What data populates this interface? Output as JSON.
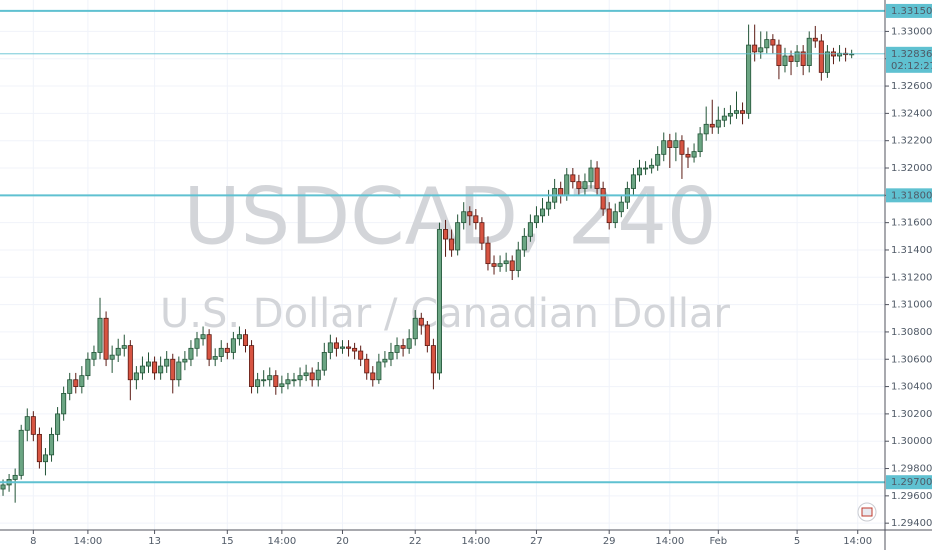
{
  "chart_data": {
    "type": "candlestick",
    "title": "USDCAD, 240",
    "subtitle": "U.S. Dollar / Canadian Dollar",
    "up_color": "#6ba583",
    "down_color": "#d75442",
    "up_border": "#225437",
    "down_border": "#5b1a13",
    "level_color": "#5fc1d1",
    "grid": true,
    "xlim": [
      -0.5,
      145.5
    ],
    "ylim": [
      1.2935,
      1.3323
    ],
    "xticks": [
      {
        "value": 5,
        "label": "8"
      },
      {
        "value": 14,
        "label": "14:00"
      },
      {
        "value": 25,
        "label": "13"
      },
      {
        "value": 37,
        "label": "15"
      },
      {
        "value": 46,
        "label": "14:00"
      },
      {
        "value": 56,
        "label": "20"
      },
      {
        "value": 68,
        "label": "22"
      },
      {
        "value": 78,
        "label": "14:00"
      },
      {
        "value": 88,
        "label": "27"
      },
      {
        "value": 100,
        "label": "29"
      },
      {
        "value": 110,
        "label": "14:00"
      },
      {
        "value": 118,
        "label": "Feb"
      },
      {
        "value": 131,
        "label": "5"
      },
      {
        "value": 141,
        "label": "14:00"
      }
    ],
    "yticks": [
      {
        "value": 1.294,
        "label": "1.29400"
      },
      {
        "value": 1.296,
        "label": "1.29600"
      },
      {
        "value": 1.298,
        "label": "1.29800"
      },
      {
        "value": 1.3,
        "label": "1.30000"
      },
      {
        "value": 1.302,
        "label": "1.30200"
      },
      {
        "value": 1.304,
        "label": "1.30400"
      },
      {
        "value": 1.306,
        "label": "1.30600"
      },
      {
        "value": 1.308,
        "label": "1.30800"
      },
      {
        "value": 1.31,
        "label": "1.31000"
      },
      {
        "value": 1.312,
        "label": "1.31200"
      },
      {
        "value": 1.314,
        "label": "1.31400"
      },
      {
        "value": 1.316,
        "label": "1.31600"
      },
      {
        "value": 1.318,
        "label": "1.31800"
      },
      {
        "value": 1.32,
        "label": "1.32000"
      },
      {
        "value": 1.322,
        "label": "1.32200"
      },
      {
        "value": 1.324,
        "label": "1.32400"
      },
      {
        "value": 1.326,
        "label": "1.32600"
      },
      {
        "value": 1.328,
        "label": "1.32800"
      },
      {
        "value": 1.33,
        "label": "1.33000"
      }
    ],
    "levels": [
      {
        "value": 1.3315,
        "label": "1.33150"
      },
      {
        "value": 1.318,
        "label": "1.31800"
      },
      {
        "value": 1.297,
        "label": "1.29700"
      }
    ],
    "last_price": 1.32836,
    "countdown": "02:12:27",
    "candles": [
      [
        1.2965,
        1.2972,
        1.296,
        1.2968
      ],
      [
        1.2968,
        1.2976,
        1.2963,
        1.2972
      ],
      [
        1.2972,
        1.298,
        1.2955,
        1.2975
      ],
      [
        1.2975,
        1.3012,
        1.2972,
        1.3008
      ],
      [
        1.3008,
        1.3024,
        1.3,
        1.3018
      ],
      [
        1.3018,
        1.3022,
        1.3,
        1.3005
      ],
      [
        1.3005,
        1.301,
        1.298,
        1.2985
      ],
      [
        1.2985,
        1.2995,
        1.2975,
        1.299
      ],
      [
        1.299,
        1.301,
        1.2985,
        1.3005
      ],
      [
        1.3005,
        1.3025,
        1.3,
        1.302
      ],
      [
        1.302,
        1.304,
        1.3015,
        1.3035
      ],
      [
        1.3035,
        1.305,
        1.303,
        1.3045
      ],
      [
        1.3045,
        1.305,
        1.3035,
        1.304
      ],
      [
        1.304,
        1.3055,
        1.3035,
        1.3048
      ],
      [
        1.3048,
        1.3065,
        1.3045,
        1.306
      ],
      [
        1.306,
        1.307,
        1.3055,
        1.3065
      ],
      [
        1.3065,
        1.3105,
        1.306,
        1.309
      ],
      [
        1.309,
        1.3095,
        1.3055,
        1.306
      ],
      [
        1.306,
        1.307,
        1.305,
        1.3063
      ],
      [
        1.3063,
        1.3075,
        1.3058,
        1.3068
      ],
      [
        1.3068,
        1.3078,
        1.3062,
        1.307
      ],
      [
        1.307,
        1.3074,
        1.303,
        1.3045
      ],
      [
        1.3045,
        1.3055,
        1.3038,
        1.305
      ],
      [
        1.305,
        1.3062,
        1.3045,
        1.3055
      ],
      [
        1.3055,
        1.3065,
        1.305,
        1.3058
      ],
      [
        1.3058,
        1.3062,
        1.3045,
        1.305
      ],
      [
        1.305,
        1.3062,
        1.3045,
        1.3055
      ],
      [
        1.3055,
        1.3066,
        1.305,
        1.306
      ],
      [
        1.306,
        1.3064,
        1.3035,
        1.3045
      ],
      [
        1.3045,
        1.3062,
        1.304,
        1.3058
      ],
      [
        1.3058,
        1.3066,
        1.3052,
        1.306
      ],
      [
        1.306,
        1.3074,
        1.3055,
        1.3068
      ],
      [
        1.3068,
        1.308,
        1.3062,
        1.3075
      ],
      [
        1.3075,
        1.3084,
        1.307,
        1.3078
      ],
      [
        1.3078,
        1.3082,
        1.3055,
        1.306
      ],
      [
        1.306,
        1.3068,
        1.3055,
        1.3062
      ],
      [
        1.3062,
        1.3074,
        1.3058,
        1.3068
      ],
      [
        1.3068,
        1.3072,
        1.306,
        1.3065
      ],
      [
        1.3065,
        1.308,
        1.306,
        1.3075
      ],
      [
        1.3075,
        1.3084,
        1.307,
        1.3078
      ],
      [
        1.3078,
        1.3082,
        1.3065,
        1.307
      ],
      [
        1.307,
        1.3074,
        1.3035,
        1.304
      ],
      [
        1.304,
        1.305,
        1.3035,
        1.3045
      ],
      [
        1.3045,
        1.3052,
        1.304,
        1.3045
      ],
      [
        1.3045,
        1.3054,
        1.304,
        1.3048
      ],
      [
        1.3048,
        1.3052,
        1.3034,
        1.304
      ],
      [
        1.304,
        1.3048,
        1.3035,
        1.3042
      ],
      [
        1.3042,
        1.305,
        1.3038,
        1.3045
      ],
      [
        1.3045,
        1.305,
        1.304,
        1.3045
      ],
      [
        1.3045,
        1.3054,
        1.304,
        1.3048
      ],
      [
        1.3048,
        1.3056,
        1.3044,
        1.305
      ],
      [
        1.305,
        1.3054,
        1.304,
        1.3045
      ],
      [
        1.3045,
        1.3058,
        1.304,
        1.3052
      ],
      [
        1.3052,
        1.3072,
        1.3048,
        1.3065
      ],
      [
        1.3065,
        1.3078,
        1.306,
        1.3072
      ],
      [
        1.3072,
        1.3076,
        1.3062,
        1.3068
      ],
      [
        1.3068,
        1.3074,
        1.3064,
        1.3069
      ],
      [
        1.3069,
        1.3074,
        1.3062,
        1.3068
      ],
      [
        1.3068,
        1.3072,
        1.306,
        1.3066
      ],
      [
        1.3066,
        1.307,
        1.3055,
        1.306
      ],
      [
        1.306,
        1.3064,
        1.3045,
        1.305
      ],
      [
        1.305,
        1.3055,
        1.304,
        1.3045
      ],
      [
        1.3045,
        1.3064,
        1.3042,
        1.3058
      ],
      [
        1.3058,
        1.3066,
        1.3054,
        1.306
      ],
      [
        1.306,
        1.3072,
        1.3055,
        1.3065
      ],
      [
        1.3065,
        1.3076,
        1.306,
        1.307
      ],
      [
        1.307,
        1.3075,
        1.3062,
        1.3068
      ],
      [
        1.3068,
        1.3082,
        1.3064,
        1.3075
      ],
      [
        1.3075,
        1.3096,
        1.307,
        1.309
      ],
      [
        1.309,
        1.3094,
        1.3078,
        1.3085
      ],
      [
        1.3085,
        1.3088,
        1.3065,
        1.307
      ],
      [
        1.307,
        1.3075,
        1.3038,
        1.305
      ],
      [
        1.305,
        1.316,
        1.3045,
        1.3155
      ],
      [
        1.3155,
        1.3162,
        1.3135,
        1.3148
      ],
      [
        1.3148,
        1.3155,
        1.3135,
        1.314
      ],
      [
        1.314,
        1.3166,
        1.3136,
        1.316
      ],
      [
        1.316,
        1.3175,
        1.3155,
        1.3168
      ],
      [
        1.3168,
        1.3172,
        1.3158,
        1.3165
      ],
      [
        1.3165,
        1.317,
        1.3155,
        1.316
      ],
      [
        1.316,
        1.3164,
        1.314,
        1.3145
      ],
      [
        1.3145,
        1.315,
        1.3125,
        1.313
      ],
      [
        1.313,
        1.3136,
        1.3122,
        1.3128
      ],
      [
        1.3128,
        1.3136,
        1.3124,
        1.313
      ],
      [
        1.313,
        1.3138,
        1.3124,
        1.3132
      ],
      [
        1.3132,
        1.3136,
        1.3118,
        1.3125
      ],
      [
        1.3125,
        1.3146,
        1.312,
        1.314
      ],
      [
        1.314,
        1.3156,
        1.3135,
        1.315
      ],
      [
        1.315,
        1.3166,
        1.3146,
        1.316
      ],
      [
        1.316,
        1.3172,
        1.3156,
        1.3165
      ],
      [
        1.3165,
        1.3178,
        1.316,
        1.317
      ],
      [
        1.317,
        1.3184,
        1.3165,
        1.3175
      ],
      [
        1.3175,
        1.3192,
        1.317,
        1.3185
      ],
      [
        1.3185,
        1.319,
        1.3174,
        1.318
      ],
      [
        1.318,
        1.32,
        1.3176,
        1.3195
      ],
      [
        1.3195,
        1.32,
        1.3185,
        1.319
      ],
      [
        1.319,
        1.3195,
        1.318,
        1.3185
      ],
      [
        1.3185,
        1.3196,
        1.318,
        1.319
      ],
      [
        1.319,
        1.3206,
        1.3185,
        1.32
      ],
      [
        1.32,
        1.3205,
        1.318,
        1.3185
      ],
      [
        1.3185,
        1.319,
        1.3165,
        1.317
      ],
      [
        1.317,
        1.3175,
        1.3155,
        1.316
      ],
      [
        1.316,
        1.3174,
        1.3156,
        1.3168
      ],
      [
        1.3168,
        1.318,
        1.3164,
        1.3175
      ],
      [
        1.3175,
        1.319,
        1.317,
        1.3185
      ],
      [
        1.3185,
        1.32,
        1.318,
        1.3195
      ],
      [
        1.3195,
        1.3206,
        1.319,
        1.32
      ],
      [
        1.32,
        1.3205,
        1.3195,
        1.32
      ],
      [
        1.32,
        1.3207,
        1.3196,
        1.3202
      ],
      [
        1.3202,
        1.3216,
        1.3198,
        1.321
      ],
      [
        1.321,
        1.3226,
        1.3205,
        1.322
      ],
      [
        1.322,
        1.3225,
        1.32,
        1.3215
      ],
      [
        1.3215,
        1.3226,
        1.3205,
        1.322
      ],
      [
        1.322,
        1.3224,
        1.3192,
        1.321
      ],
      [
        1.321,
        1.3215,
        1.32,
        1.3208
      ],
      [
        1.3208,
        1.3218,
        1.3204,
        1.3212
      ],
      [
        1.3212,
        1.323,
        1.3208,
        1.3225
      ],
      [
        1.3225,
        1.3245,
        1.322,
        1.3232
      ],
      [
        1.3232,
        1.325,
        1.3225,
        1.323
      ],
      [
        1.323,
        1.3245,
        1.3225,
        1.3235
      ],
      [
        1.3235,
        1.3244,
        1.323,
        1.3238
      ],
      [
        1.3238,
        1.3246,
        1.3232,
        1.324
      ],
      [
        1.324,
        1.3256,
        1.3236,
        1.3242
      ],
      [
        1.3242,
        1.3248,
        1.3232,
        1.324
      ],
      [
        1.324,
        1.3305,
        1.3236,
        1.329
      ],
      [
        1.329,
        1.3305,
        1.3278,
        1.3285
      ],
      [
        1.3285,
        1.33,
        1.328,
        1.3288
      ],
      [
        1.3288,
        1.33,
        1.3284,
        1.3294
      ],
      [
        1.3294,
        1.3298,
        1.3284,
        1.329
      ],
      [
        1.329,
        1.3294,
        1.3265,
        1.3275
      ],
      [
        1.3275,
        1.3288,
        1.327,
        1.3282
      ],
      [
        1.3282,
        1.3286,
        1.3268,
        1.3278
      ],
      [
        1.3278,
        1.329,
        1.3274,
        1.3285
      ],
      [
        1.3285,
        1.329,
        1.3268,
        1.3275
      ],
      [
        1.3275,
        1.33,
        1.327,
        1.3295
      ],
      [
        1.3295,
        1.3304,
        1.3288,
        1.3293
      ],
      [
        1.3293,
        1.3298,
        1.3264,
        1.327
      ],
      [
        1.327,
        1.329,
        1.3266,
        1.3285
      ],
      [
        1.3285,
        1.3288,
        1.3276,
        1.3282
      ],
      [
        1.3282,
        1.329,
        1.3278,
        1.3284
      ],
      [
        1.3284,
        1.3288,
        1.3278,
        1.3283
      ],
      [
        1.3283,
        1.32866,
        1.32804,
        1.32836
      ]
    ]
  }
}
